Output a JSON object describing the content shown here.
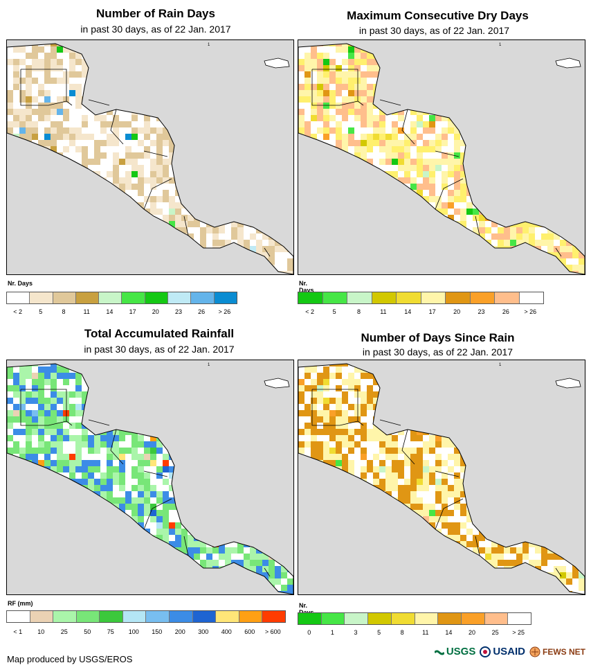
{
  "panels": [
    {
      "title": "Number of Rain Days",
      "subtitle": "in past 30 days, as of 22 Jan. 2017",
      "legend_title": "Nr. Days",
      "legend_colors": [
        "#ffffff",
        "#f5e6cc",
        "#e0c89a",
        "#c8a040",
        "#c8f5c8",
        "#46e646",
        "#14c814",
        "#bfeaf5",
        "#64b4ea",
        "#0a8cd2"
      ],
      "legend_labels": [
        "< 2",
        "5",
        "8",
        "11",
        "14",
        "17",
        "20",
        "23",
        "26",
        "> 26"
      ],
      "dominant_colors": [
        "#ffffff",
        "#f5e6cc",
        "#e0c89a"
      ]
    },
    {
      "title": "Maximum Consecutive Dry Days",
      "subtitle": "in past 30 days, as of 22 Jan. 2017",
      "legend_title": "Nr. Days",
      "legend_colors": [
        "#14c814",
        "#46e646",
        "#c8f5c8",
        "#d2c800",
        "#f0dc32",
        "#fff5aa",
        "#e09614",
        "#faa028",
        "#ffbe8c",
        "#ffffff"
      ],
      "legend_labels": [
        "< 2",
        "5",
        "8",
        "11",
        "14",
        "17",
        "20",
        "23",
        "26",
        "> 26"
      ],
      "dominant_colors": [
        "#fff06e",
        "#fff5aa",
        "#ffbe8c",
        "#ffffff"
      ]
    },
    {
      "title": "Total Accumulated Rainfall",
      "subtitle": "in past 30 days, as of 22 Jan. 2017",
      "legend_title": "RF (mm)",
      "legend_colors": [
        "#ffffff",
        "#ebd2b4",
        "#aaf5aa",
        "#78e678",
        "#3cc83c",
        "#b4e6f5",
        "#78bef0",
        "#3c8ce6",
        "#1e64d2",
        "#ffe678",
        "#ffa014",
        "#ff3c00"
      ],
      "legend_labels": [
        "< 1",
        "10",
        "25",
        "50",
        "75",
        "100",
        "150",
        "200",
        "300",
        "400",
        "600",
        "> 600"
      ],
      "dominant_colors": [
        "#78e678",
        "#aaf5aa",
        "#ffffff",
        "#3c8ce6"
      ]
    },
    {
      "title": "Number of Days Since Rain",
      "subtitle": "in past 30 days, as of 22 Jan. 2017",
      "legend_title": "Nr. Days",
      "legend_colors": [
        "#14c814",
        "#46e646",
        "#c8f5c8",
        "#d2c800",
        "#f0dc32",
        "#fff5aa",
        "#e09614",
        "#faa028",
        "#ffbe8c",
        "#ffffff"
      ],
      "legend_labels": [
        "0",
        "1",
        "3",
        "5",
        "8",
        "11",
        "14",
        "20",
        "25",
        "> 25"
      ],
      "dominant_colors": [
        "#e09614",
        "#ffffff",
        "#fff5aa"
      ]
    }
  ],
  "map_tick": "1",
  "footer": "Map produced by USGS/EROS",
  "logos": [
    "USGS",
    "USAID",
    "FEWS NET"
  ]
}
